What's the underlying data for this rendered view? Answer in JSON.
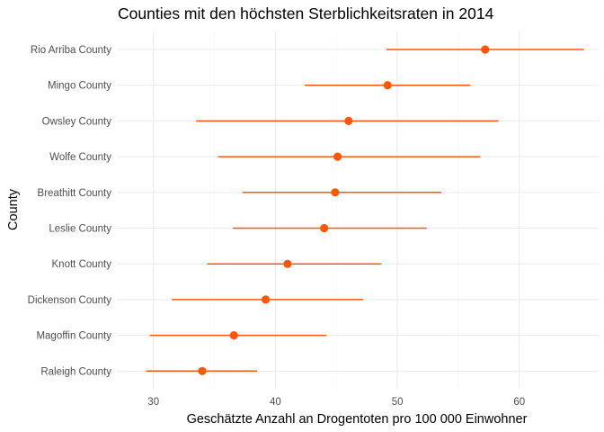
{
  "chart_data": {
    "type": "dot-range",
    "title": "Counties mit den höchsten Sterblichkeitsraten in 2014",
    "xlabel": "Geschätzte Anzahl an Drogentoten pro 100 000 Einwohner",
    "ylabel": "County",
    "xlim": [
      27.0,
      66.5
    ],
    "x_ticks": [
      30,
      40,
      50,
      60
    ],
    "grid": true,
    "color": "#FF5709",
    "categories": [
      "Rio Arriba County",
      "Mingo County",
      "Owsley County",
      "Wolfe County",
      "Breathitt County",
      "Leslie County",
      "Knott County",
      "Dickenson County",
      "Magoffin County",
      "Raleigh County"
    ],
    "values": [
      57.2,
      49.2,
      46.0,
      45.1,
      44.9,
      44.0,
      41.0,
      39.2,
      36.6,
      34.0
    ],
    "lower": [
      49.1,
      42.4,
      33.5,
      35.3,
      37.3,
      36.5,
      34.4,
      31.5,
      29.7,
      29.4
    ],
    "upper": [
      65.3,
      56.0,
      58.3,
      56.8,
      53.6,
      52.4,
      48.7,
      47.2,
      44.2,
      38.5
    ]
  }
}
